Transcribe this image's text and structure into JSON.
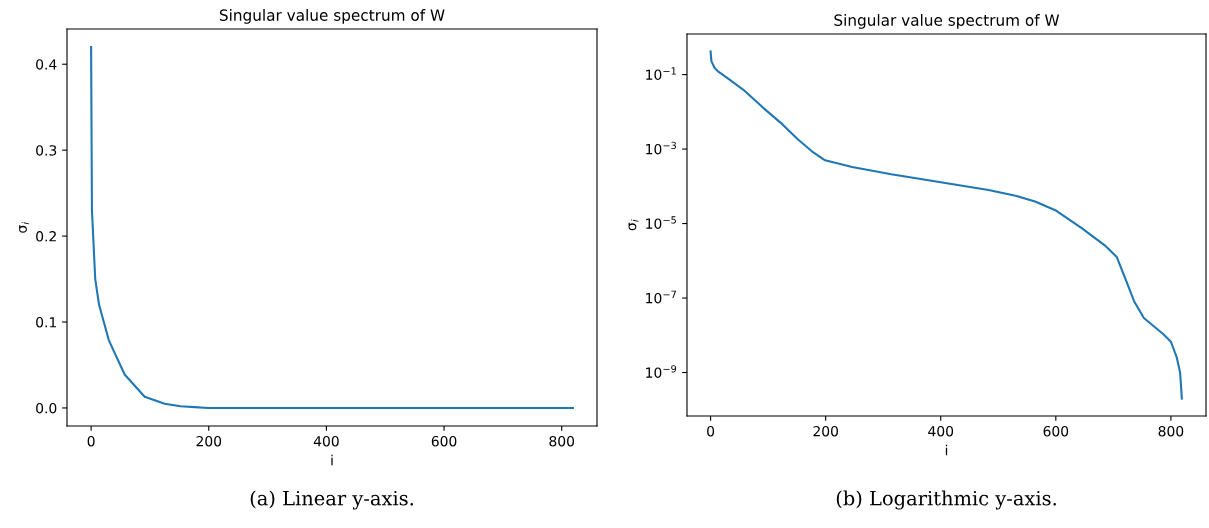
{
  "chart_data": [
    {
      "type": "line",
      "title": "Singular value spectrum of W",
      "xlabel": "i",
      "ylabel": "σ$_{i}$",
      "color": "#1f77b4",
      "x": [
        0,
        1.4,
        7,
        13.5,
        30,
        57,
        91,
        125,
        152,
        176,
        199,
        246,
        314,
        400,
        483,
        530,
        564,
        601,
        645,
        685,
        706,
        722,
        736,
        753,
        787,
        800,
        810,
        816,
        819
      ],
      "values": [
        0.42,
        0.23,
        0.15,
        0.12,
        0.079,
        0.039,
        0.013,
        0.005,
        0.002,
        0.001,
        0,
        0,
        0,
        0,
        0,
        0,
        0,
        0,
        0,
        0,
        0,
        0,
        0,
        0,
        0,
        0,
        0,
        0,
        0
      ],
      "xlim": [
        -41,
        860
      ],
      "ylim": [
        -0.021,
        0.441
      ],
      "xticks": [
        0,
        200,
        400,
        600,
        800
      ],
      "yticks": [
        {
          "value": 0,
          "label": "0.0"
        },
        0.1,
        0.2,
        0.3,
        0.4
      ],
      "annotations": [
        "(a) Linear y-axis."
      ]
    },
    {
      "type": "line",
      "title": "Singular value spectrum of W",
      "xlabel": "i",
      "ylabel": "σ$_{i}$",
      "color": "#1f77b4",
      "log": true,
      "x": [
        0,
        1.4,
        7,
        13.5,
        30,
        57,
        91,
        125,
        152,
        176,
        199,
        246,
        314,
        400,
        483,
        530,
        564,
        601,
        645,
        685,
        706,
        722,
        736,
        753,
        787,
        800,
        810,
        816,
        819
      ],
      "values": [
        0.42,
        0.23,
        0.15,
        0.12,
        0.079,
        0.039,
        0.013,
        0.0046,
        0.0018,
        0.00087,
        0.0005,
        0.00033,
        0.00021,
        0.000129,
        8e-05,
        5.6e-05,
        3.9e-05,
        2.2e-05,
        7.5e-06,
        2.6e-06,
        1.26e-06,
        3e-07,
        8.2e-08,
        2.9e-08,
        1.07e-08,
        6.7e-09,
        2.6e-09,
        1e-09,
        2e-10
      ],
      "xlim": [
        -41,
        861
      ],
      "ylim": [
        6.8e-11,
        1.23
      ],
      "xticks": [
        0,
        200,
        400,
        600,
        800
      ],
      "yticks": [
        {
          "value": 0.1,
          "label": "10$^{−1}$"
        },
        {
          "value": 0.001,
          "label": "10$^{−3}$"
        },
        {
          "value": 1e-05,
          "label": "10$^{−5}$"
        },
        {
          "value": 1e-07,
          "label": "10$^{−7}$"
        },
        {
          "value": 1e-09,
          "label": "10$^{−9}$"
        }
      ],
      "annotations": [
        "(b) Logarithmic y-axis."
      ]
    }
  ]
}
